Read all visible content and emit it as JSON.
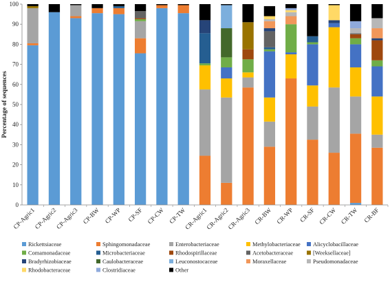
{
  "chart_data": {
    "type": "bar",
    "stacked": true,
    "title": "",
    "xlabel": "",
    "ylabel": "Percentage of sequences",
    "ylim": [
      0,
      100
    ],
    "yticks": [
      0,
      10,
      20,
      30,
      40,
      50,
      60,
      70,
      80,
      90,
      100
    ],
    "grid": false,
    "legend_position": "bottom",
    "categories": [
      "CP-Agric1",
      "CP-Agric2",
      "CP-Agric3",
      "CP-BW",
      "CP-WP",
      "CP-SF",
      "CP-CW",
      "CP-TW",
      "CR-Agric1",
      "CR-Agric2",
      "CR-Agric3",
      "CR-BW",
      "CR-WP",
      "CR-SF",
      "CR-CW",
      "CR-TW",
      "CR-BF"
    ],
    "series": [
      {
        "name": "Rickettsiaceae",
        "color": "#5b9bd5",
        "values": [
          79.5,
          96,
          93,
          95.5,
          95,
          75.5,
          98,
          95.5,
          0,
          0,
          0,
          0,
          0,
          0,
          0,
          1,
          0
        ]
      },
      {
        "name": "Sphingomonadaceae",
        "color": "#ed7d31",
        "values": [
          1,
          0,
          1,
          2.5,
          3,
          7.5,
          1.5,
          4,
          24.5,
          11,
          58.5,
          29,
          63,
          32.5,
          26,
          34.5,
          28.5
        ]
      },
      {
        "name": "Enterobacteriaceae",
        "color": "#a5a5a5",
        "values": [
          17.5,
          0,
          5.5,
          0,
          0,
          8.5,
          0,
          0,
          33,
          42.5,
          5,
          12.5,
          0,
          16.5,
          32.5,
          18.5,
          6.5
        ]
      },
      {
        "name": "Methylobacteriaceae",
        "color": "#ffc000",
        "values": [
          0,
          0,
          0,
          0,
          0,
          0,
          0,
          0,
          12,
          9.5,
          2.5,
          12,
          12,
          10.5,
          30,
          14.5,
          19
        ]
      },
      {
        "name": "Alicyclobacillaceae",
        "color": "#4472c4",
        "values": [
          0,
          0,
          0,
          0,
          0,
          0,
          0,
          0,
          0,
          5.5,
          0,
          23,
          1,
          20.5,
          2,
          11.5,
          15
        ]
      },
      {
        "name": "Comamonadaceae",
        "color": "#70ad47",
        "values": [
          0,
          0,
          0,
          0,
          0,
          1,
          0,
          0,
          1,
          5,
          6.5,
          1,
          14,
          1,
          0,
          3,
          3
        ]
      },
      {
        "name": "Microbacteriaceae",
        "color": "#255e91",
        "values": [
          0,
          0,
          0,
          0,
          1,
          0,
          0,
          0,
          15,
          0,
          0,
          1,
          0,
          3,
          0,
          0,
          0
        ]
      },
      {
        "name": "Rhodospirillaceae",
        "color": "#9e480e",
        "values": [
          0,
          0,
          0,
          0,
          0,
          0.5,
          0,
          0,
          0,
          0,
          5,
          0,
          0,
          0,
          0,
          2,
          10
        ]
      },
      {
        "name": "Acetobacteraceae",
        "color": "#636363",
        "values": [
          0,
          0,
          0,
          0,
          0,
          3.5,
          0,
          0,
          0,
          0,
          0,
          8,
          0,
          0,
          0,
          0.5,
          0
        ]
      },
      {
        "name": "[Weeksellaceae]",
        "color": "#997300",
        "values": [
          1,
          0,
          0,
          0,
          0,
          0,
          0,
          0,
          0,
          0,
          13.5,
          0,
          0,
          0,
          0,
          0,
          0
        ]
      },
      {
        "name": "Bradyrhizobiaceae",
        "color": "#264478",
        "values": [
          0,
          0,
          0,
          0,
          0,
          0,
          0,
          0,
          6.5,
          0,
          0,
          1.5,
          0,
          0,
          1.5,
          0,
          1
        ]
      },
      {
        "name": "Caulobacteraceae",
        "color": "#43682b",
        "values": [
          0,
          0,
          0,
          0,
          0,
          0,
          0,
          0,
          0,
          14.5,
          0,
          0,
          0,
          0,
          0,
          0,
          0
        ]
      },
      {
        "name": "Leuconostocaceae",
        "color": "#7cafdd",
        "values": [
          0,
          0,
          0,
          0,
          0,
          0,
          0,
          0,
          0,
          11.5,
          0,
          0,
          0,
          0,
          0,
          0,
          0
        ]
      },
      {
        "name": "Moraxellaceae",
        "color": "#f1975a",
        "values": [
          0,
          0,
          0,
          0,
          0,
          0,
          0,
          0,
          0,
          0,
          0,
          3.5,
          4,
          0,
          0,
          0,
          5
        ]
      },
      {
        "name": "Pseudomonadaceae",
        "color": "#b7b7b7",
        "values": [
          0,
          0,
          0,
          0,
          0,
          0,
          0,
          0,
          0,
          0,
          0,
          1,
          2,
          0,
          0,
          2.5,
          5
        ]
      },
      {
        "name": "Rhodobacteraceae",
        "color": "#ffd966",
        "values": [
          0,
          0,
          0,
          0,
          0,
          0,
          0,
          0,
          0,
          0,
          0,
          1.5,
          1,
          0,
          7.5,
          0,
          0
        ]
      },
      {
        "name": "Clostridiaceae",
        "color": "#8faadc",
        "values": [
          0,
          0,
          0,
          0,
          0,
          0,
          0,
          0,
          0,
          0,
          0,
          0,
          1,
          0,
          0,
          3.5,
          0
        ]
      },
      {
        "name": "Other",
        "color": "#000000",
        "values": [
          1,
          4,
          0.5,
          2,
          1,
          3.5,
          0.5,
          0.5,
          8,
          0.5,
          9,
          5,
          2,
          16,
          0.5,
          8.5,
          7
        ]
      }
    ]
  }
}
